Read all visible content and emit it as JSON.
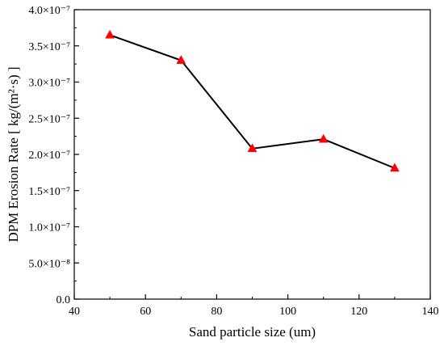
{
  "chart_data": {
    "type": "line",
    "title": "",
    "xlabel": "Sand particle size (um)",
    "ylabel": "DPM Erosion Rate [ kg/(m²·s) ]",
    "xlim": [
      40,
      140
    ],
    "ylim": [
      0,
      4e-07
    ],
    "x_ticks": [
      {
        "value": 40,
        "label": "40"
      },
      {
        "value": 60,
        "label": "60"
      },
      {
        "value": 80,
        "label": "80"
      },
      {
        "value": 100,
        "label": "100"
      },
      {
        "value": 120,
        "label": "120"
      },
      {
        "value": 140,
        "label": "140"
      }
    ],
    "y_ticks": [
      {
        "value": 0,
        "label": "0.0"
      },
      {
        "value": 5e-08,
        "label": "5.0×10⁻⁸"
      },
      {
        "value": 1e-07,
        "label": "1.0×10⁻⁷"
      },
      {
        "value": 1.5e-07,
        "label": "1.5×10⁻⁷"
      },
      {
        "value": 2e-07,
        "label": "2.0×10⁻⁷"
      },
      {
        "value": 2.5e-07,
        "label": "2.5×10⁻⁷"
      },
      {
        "value": 3e-07,
        "label": "3.0×10⁻⁷"
      },
      {
        "value": 3.5e-07,
        "label": "3.5×10⁻⁷"
      },
      {
        "value": 4e-07,
        "label": "4.0×10⁻⁷"
      }
    ],
    "series": [
      {
        "x": [
          50,
          70,
          90,
          110,
          130
        ],
        "y": [
          3.65e-07,
          3.3e-07,
          2.08e-07,
          2.21e-07,
          1.81e-07
        ],
        "line_color": "#000000",
        "marker": "triangle",
        "marker_color": "#ff0000"
      }
    ],
    "grid": false,
    "legend": "none"
  }
}
